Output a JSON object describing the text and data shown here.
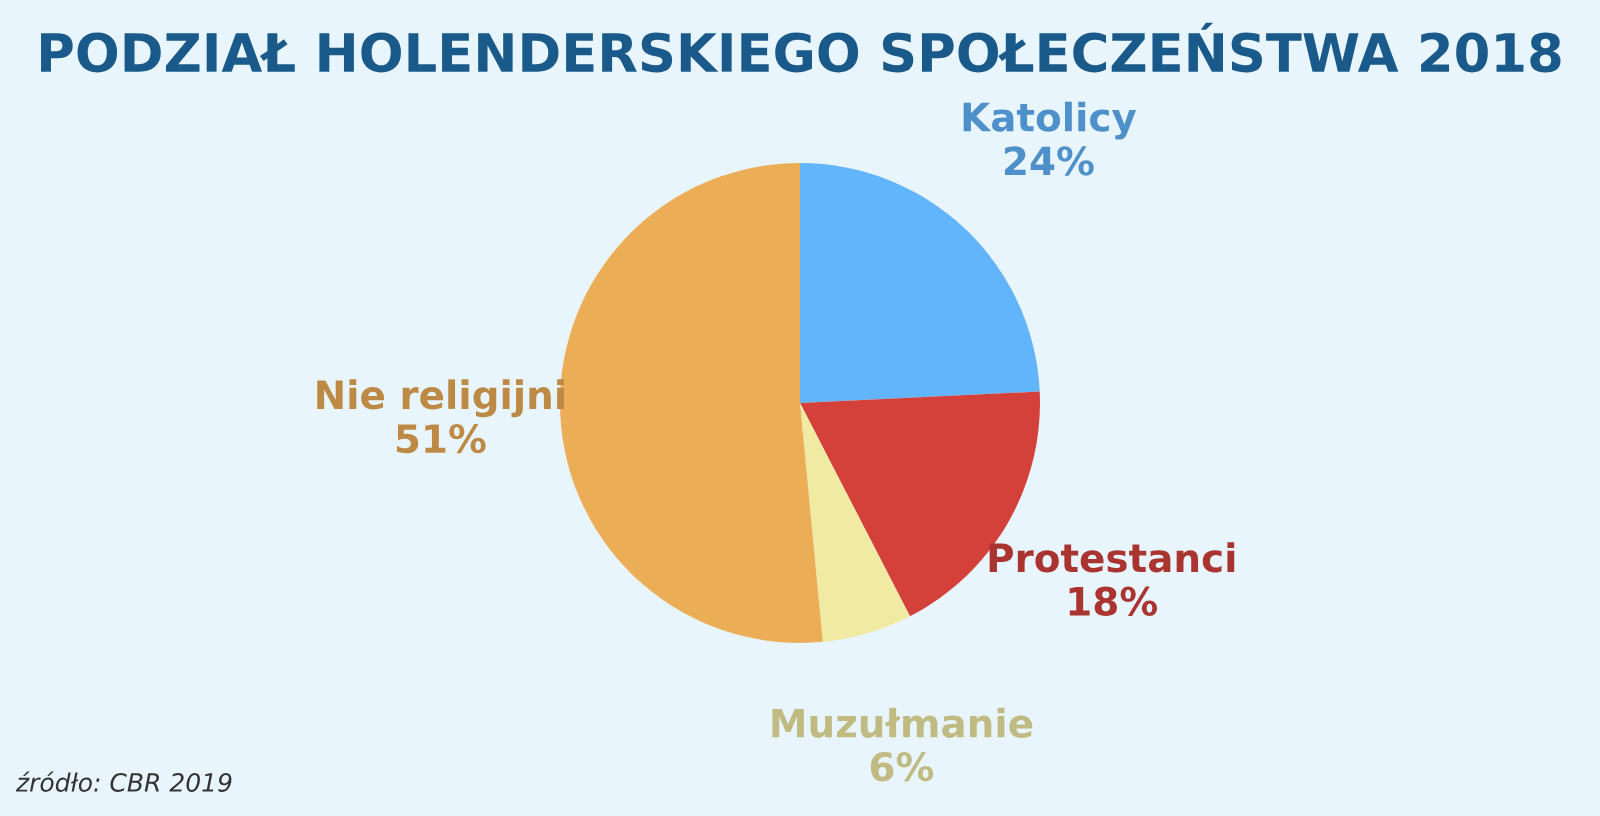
{
  "chart_data": {
    "type": "pie",
    "title": "PODZIAŁ HOLENDERSKIEGO SPOŁECZEŃSTWA 2018",
    "categories": [
      "Katolicy",
      "Protestanci",
      "Muzułmanie",
      "Nie religijni"
    ],
    "values": [
      24,
      18,
      6,
      51
    ],
    "value_labels": [
      "24%",
      "18%",
      "6%",
      "51%"
    ],
    "colors": [
      "#62b4fb",
      "#d4413b",
      "#f0eaa2",
      "#ecad57"
    ],
    "annotations": [
      "źródło: CBR 2019"
    ]
  }
}
